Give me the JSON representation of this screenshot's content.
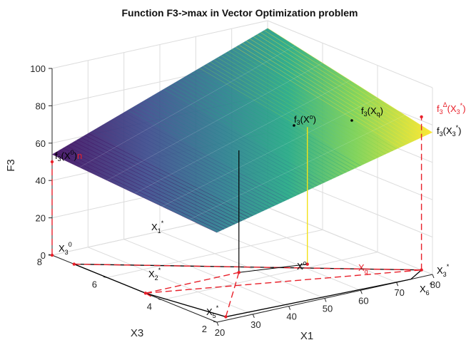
{
  "chart_data": {
    "type": "surface3d",
    "title": "Function F3->max in Vector Optimization problem",
    "zlabel": "F3",
    "xlabel": "X1",
    "ylabel": "X3",
    "xlim": [
      20,
      80
    ],
    "ylim": [
      2,
      8
    ],
    "zlim": [
      0,
      100
    ],
    "x_ticks": [
      "20",
      "30",
      "40",
      "50",
      "60",
      "70",
      "80"
    ],
    "y_ticks": [
      "2",
      "4",
      "6",
      "8"
    ],
    "z_ticks": [
      "0",
      "20",
      "40",
      "60",
      "80",
      "100"
    ],
    "grid": true,
    "colormap": [
      "#3e0a5e",
      "#3b4a8c",
      "#2a7d8e",
      "#22a884",
      "#7ad151",
      "#fde725"
    ],
    "plane": {
      "formula_note": "",
      "corners": [
        {
          "x": 20,
          "y": 2,
          "z": 48
        },
        {
          "x": 80,
          "y": 2,
          "z": 76
        },
        {
          "x": 80,
          "y": 8,
          "z": 96
        },
        {
          "x": 20,
          "y": 8,
          "z": 54
        }
      ]
    },
    "points": [
      {
        "name": "X1*",
        "x": 20,
        "y": 7.2,
        "z": 0
      },
      {
        "name": "X2*",
        "x": 20,
        "y": 4.6,
        "z": 0
      },
      {
        "name": "X5*",
        "x": 24,
        "y": 2.2,
        "z": 0
      },
      {
        "name": "X6*",
        "x": 74,
        "y": 2,
        "z": 0
      },
      {
        "name": "X3*",
        "x": 80,
        "y": 2.4,
        "z": 0
      },
      {
        "name": "Xo",
        "x": 46,
        "y": 4.6,
        "z": 0
      },
      {
        "name": "Xq",
        "x": 62,
        "y": 4.2,
        "z": 0
      },
      {
        "name": "X3o",
        "x": 20,
        "y": 8,
        "z": 0
      }
    ]
  },
  "labels": {
    "f3_x0": "f",
    "f3_x0_sub": "3",
    "f3_x0_arg": "(X",
    "f3_x0_sup": "o",
    "f3_x0_close": ")",
    "f3_xq": "f",
    "f3_xq_sub": "3",
    "f3_xq_arg": "(X",
    "f3_xq_arg_sub": "q",
    "f3_xq_close": ")",
    "f3_x30": "f",
    "f3_x30_sub": "3",
    "f3_x30_arg": "(X",
    "f3_x30_sup": "0",
    "f3_x30_tail": ")",
    "f3_x30_red": "n",
    "f3_delta": "f",
    "f3_delta_sub": "3",
    "f3_delta_sup": "Δ",
    "f3_delta_arg": "(X",
    "f3_delta_arg_sub": "3",
    "f3_delta_arg_sup": "*",
    "f3_delta_close": ")",
    "f3_star": "f",
    "f3_star_sub": "3",
    "f3_star_arg": "(X",
    "f3_star_arg_sub": "3",
    "f3_star_arg_sup": "*",
    "f3_star_close": ")",
    "x1s": "X",
    "x1s_sub": "1",
    "x1s_sup": "*",
    "x2s": "X",
    "x2s_sub": "2",
    "x2s_sup": "*",
    "x5s": "X",
    "x5s_sub": "5",
    "x5s_sup": "*",
    "x6s": "X",
    "x6s_sub": "6",
    "x6s_sup": "*",
    "x3s": "X",
    "x3s_sub": "3",
    "x3s_sup": "*",
    "xo": "X",
    "xo_sup": "o",
    "xq": "X",
    "xq_sub": "q",
    "x30": "X",
    "x30_sub": "3",
    "x30_sup": "0"
  }
}
